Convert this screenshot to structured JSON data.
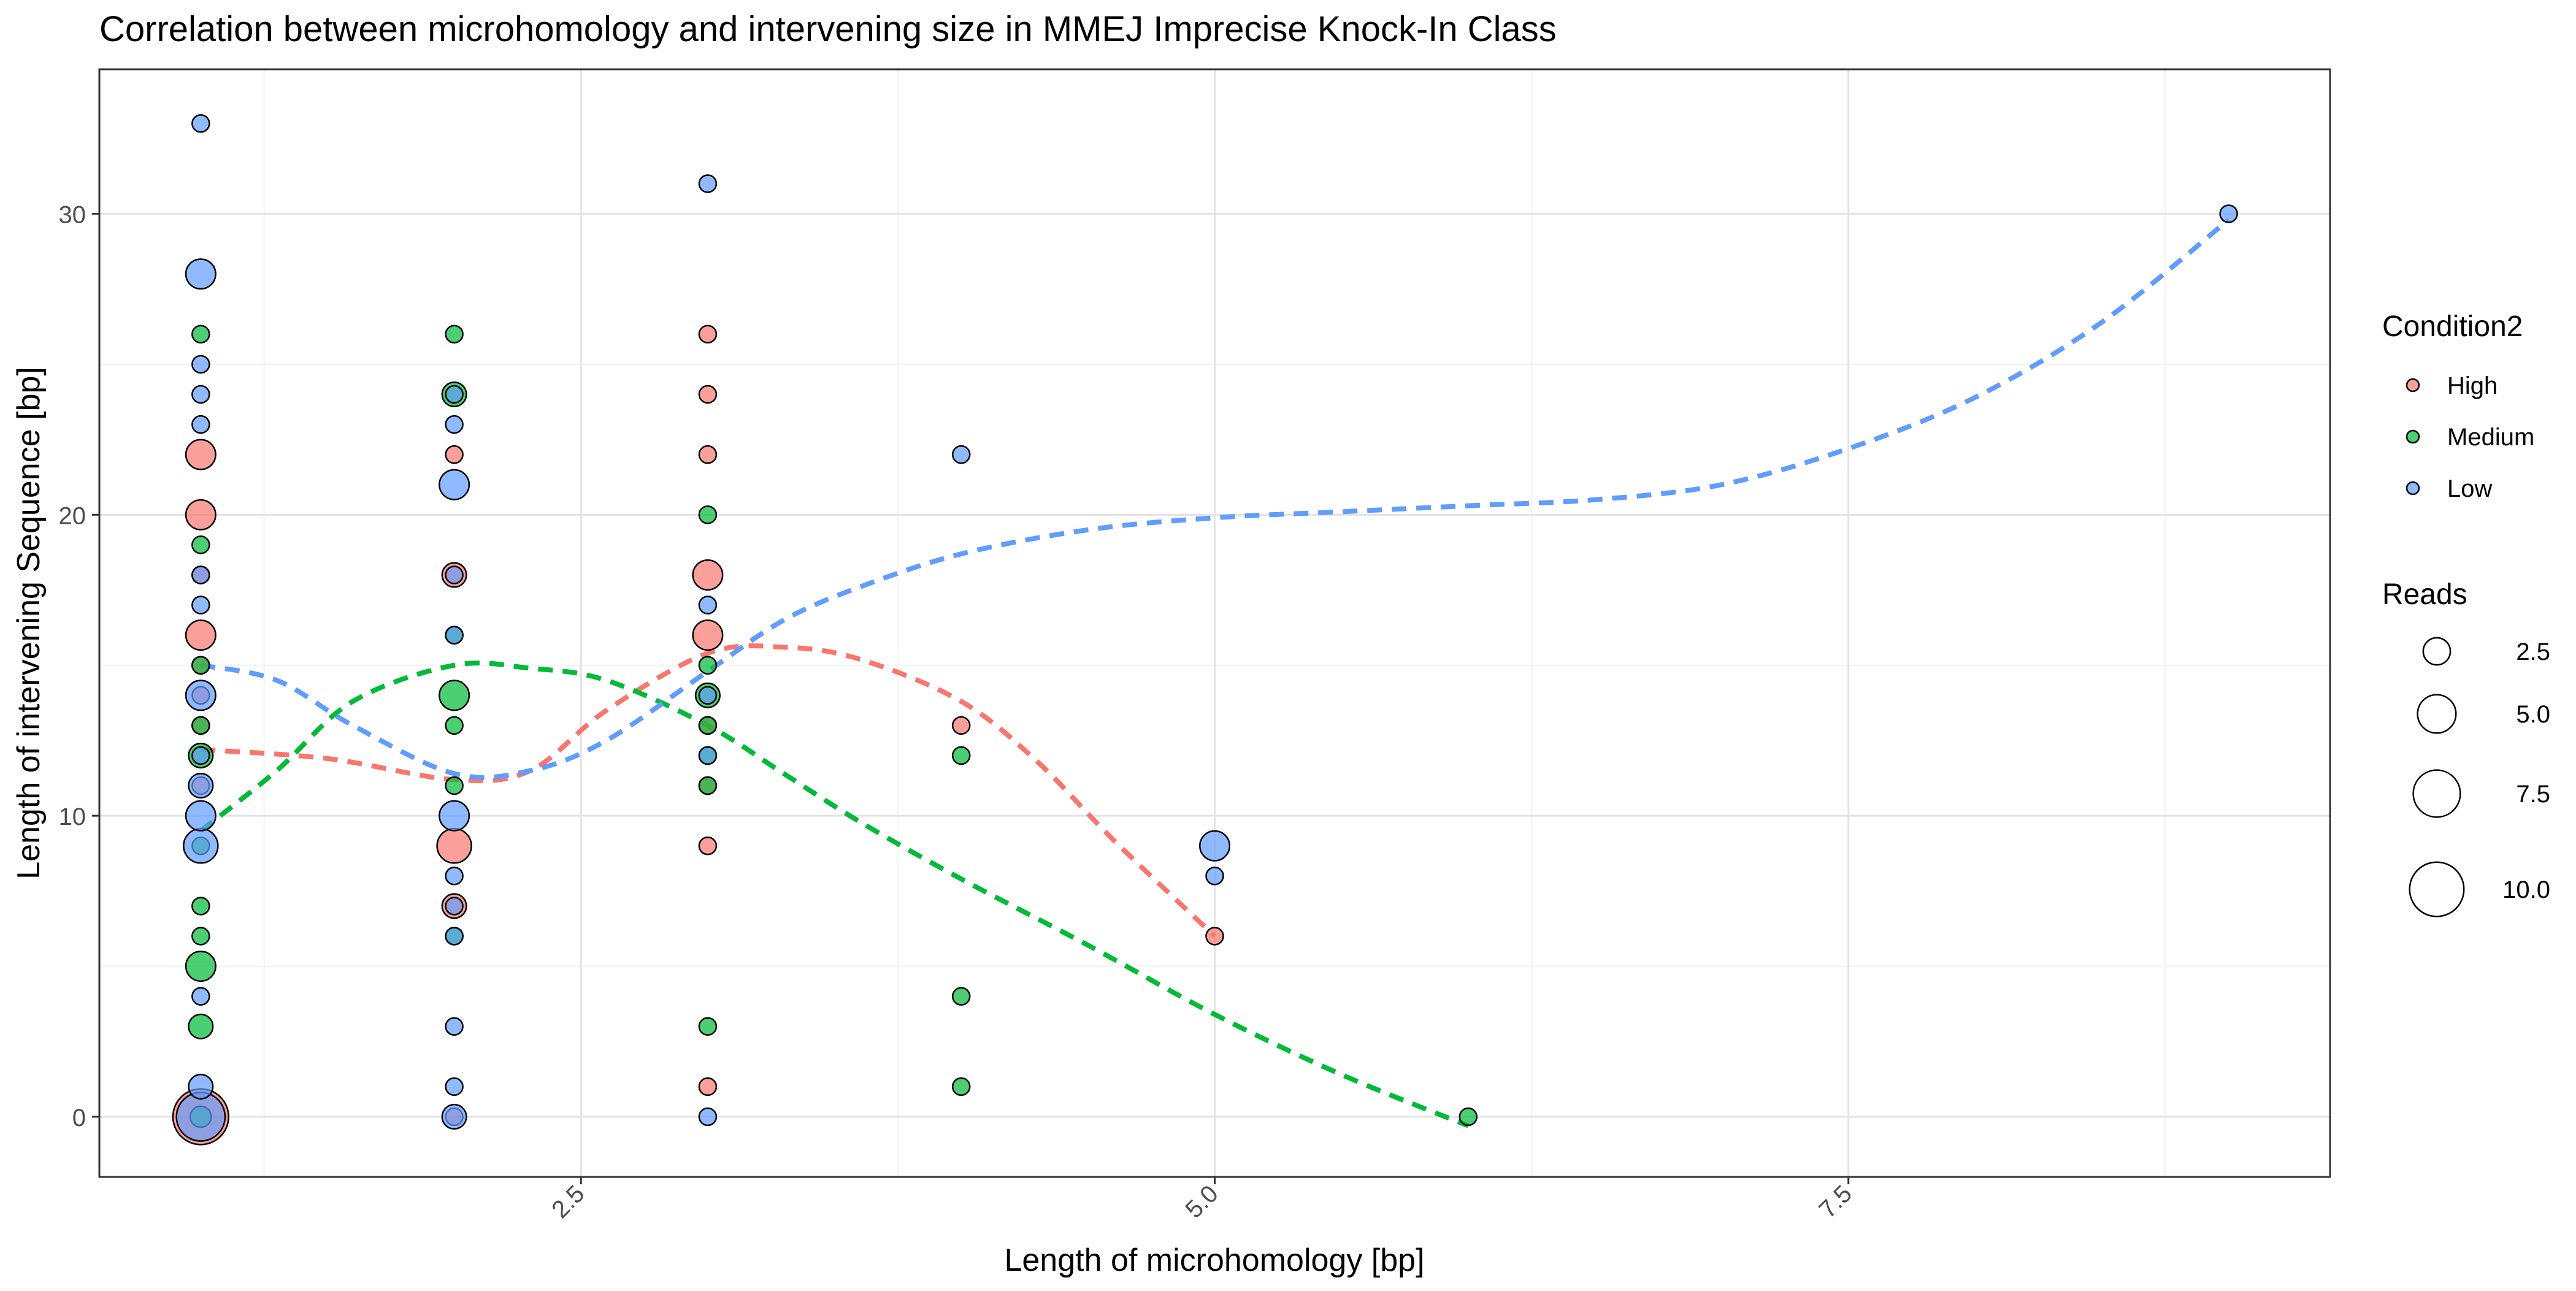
{
  "chart_data": {
    "type": "scatter",
    "title": "Correlation between microhomology and intervening size in MMEJ Imprecise Knock-In Class",
    "xlabel": "Length of microhomology [bp]",
    "ylabel": "Length of intervening Sequence [bp]",
    "xlim": [
      0.6,
      9.4
    ],
    "ylim": [
      -2,
      34.8
    ],
    "xticks": [
      2.5,
      5.0,
      7.5
    ],
    "xtick_labels": [
      "2.5",
      "5.0",
      "7.5"
    ],
    "yticks": [
      0,
      10,
      20,
      30
    ],
    "ytick_labels": [
      "0",
      "10",
      "20",
      "30"
    ],
    "grid": true,
    "legend_position": "right",
    "legend": {
      "color_title": "Condition2",
      "size_title": "Reads",
      "size_breaks": [
        2.5,
        5.0,
        7.5,
        10.0
      ],
      "size_labels": [
        "2.5",
        "5.0",
        "7.5",
        "10.0"
      ]
    },
    "series": [
      {
        "name": "High",
        "color": "#F8766D",
        "points": [
          {
            "x": 1,
            "y": 0,
            "r": 10.5
          },
          {
            "x": 1,
            "y": 16,
            "r": 3
          },
          {
            "x": 1,
            "y": 18,
            "r": 1
          },
          {
            "x": 1,
            "y": 20,
            "r": 3
          },
          {
            "x": 1,
            "y": 22,
            "r": 3
          },
          {
            "x": 1,
            "y": 15,
            "r": 1
          },
          {
            "x": 1,
            "y": 14,
            "r": 1
          },
          {
            "x": 1,
            "y": 11,
            "r": 1
          },
          {
            "x": 1,
            "y": 13,
            "r": 1
          },
          {
            "x": 2,
            "y": 9,
            "r": 4
          },
          {
            "x": 2,
            "y": 7,
            "r": 2
          },
          {
            "x": 2,
            "y": 18,
            "r": 2
          },
          {
            "x": 2,
            "y": 22,
            "r": 1
          },
          {
            "x": 2,
            "y": 0,
            "r": 1
          },
          {
            "x": 3,
            "y": 16,
            "r": 3
          },
          {
            "x": 3,
            "y": 18,
            "r": 3
          },
          {
            "x": 3,
            "y": 22,
            "r": 1
          },
          {
            "x": 3,
            "y": 24,
            "r": 1
          },
          {
            "x": 3,
            "y": 26,
            "r": 1
          },
          {
            "x": 3,
            "y": 13,
            "r": 1
          },
          {
            "x": 3,
            "y": 11,
            "r": 1
          },
          {
            "x": 3,
            "y": 9,
            "r": 1
          },
          {
            "x": 3,
            "y": 1,
            "r": 1
          },
          {
            "x": 4,
            "y": 13,
            "r": 1
          },
          {
            "x": 5,
            "y": 6,
            "r": 1
          }
        ]
      },
      {
        "name": "Medium",
        "color": "#00BA38",
        "points": [
          {
            "x": 1,
            "y": 0,
            "r": 1.5
          },
          {
            "x": 1,
            "y": 3,
            "r": 2
          },
          {
            "x": 1,
            "y": 5,
            "r": 3
          },
          {
            "x": 1,
            "y": 6,
            "r": 1
          },
          {
            "x": 1,
            "y": 7,
            "r": 1
          },
          {
            "x": 1,
            "y": 9,
            "r": 1
          },
          {
            "x": 1,
            "y": 12,
            "r": 2
          },
          {
            "x": 1,
            "y": 13,
            "r": 1
          },
          {
            "x": 1,
            "y": 15,
            "r": 1
          },
          {
            "x": 1,
            "y": 19,
            "r": 1
          },
          {
            "x": 1,
            "y": 26,
            "r": 1
          },
          {
            "x": 2,
            "y": 6,
            "r": 1
          },
          {
            "x": 2,
            "y": 11,
            "r": 1
          },
          {
            "x": 2,
            "y": 13,
            "r": 1
          },
          {
            "x": 2,
            "y": 14,
            "r": 3
          },
          {
            "x": 2,
            "y": 16,
            "r": 1
          },
          {
            "x": 2,
            "y": 24,
            "r": 2
          },
          {
            "x": 2,
            "y": 26,
            "r": 1
          },
          {
            "x": 3,
            "y": 3,
            "r": 1
          },
          {
            "x": 3,
            "y": 11,
            "r": 1
          },
          {
            "x": 3,
            "y": 12,
            "r": 1
          },
          {
            "x": 3,
            "y": 13,
            "r": 1
          },
          {
            "x": 3,
            "y": 14,
            "r": 2
          },
          {
            "x": 3,
            "y": 15,
            "r": 1
          },
          {
            "x": 3,
            "y": 20,
            "r": 1
          },
          {
            "x": 4,
            "y": 1,
            "r": 1
          },
          {
            "x": 4,
            "y": 4,
            "r": 1
          },
          {
            "x": 4,
            "y": 12,
            "r": 1
          },
          {
            "x": 6,
            "y": 0,
            "r": 1
          }
        ]
      },
      {
        "name": "Low",
        "color": "#619CFF",
        "points": [
          {
            "x": 1,
            "y": 0,
            "r": 8
          },
          {
            "x": 1,
            "y": 1,
            "r": 2
          },
          {
            "x": 1,
            "y": 4,
            "r": 1
          },
          {
            "x": 1,
            "y": 9,
            "r": 4
          },
          {
            "x": 1,
            "y": 10,
            "r": 3
          },
          {
            "x": 1,
            "y": 11,
            "r": 2
          },
          {
            "x": 1,
            "y": 12,
            "r": 1
          },
          {
            "x": 1,
            "y": 14,
            "r": 3
          },
          {
            "x": 1,
            "y": 17,
            "r": 1
          },
          {
            "x": 1,
            "y": 18,
            "r": 1
          },
          {
            "x": 1,
            "y": 23,
            "r": 1
          },
          {
            "x": 1,
            "y": 24,
            "r": 1
          },
          {
            "x": 1,
            "y": 25,
            "r": 1
          },
          {
            "x": 1,
            "y": 28,
            "r": 3
          },
          {
            "x": 1,
            "y": 33,
            "r": 1
          },
          {
            "x": 2,
            "y": 0,
            "r": 2
          },
          {
            "x": 2,
            "y": 1,
            "r": 1
          },
          {
            "x": 2,
            "y": 3,
            "r": 1
          },
          {
            "x": 2,
            "y": 6,
            "r": 1
          },
          {
            "x": 2,
            "y": 7,
            "r": 1
          },
          {
            "x": 2,
            "y": 8,
            "r": 1
          },
          {
            "x": 2,
            "y": 10,
            "r": 3
          },
          {
            "x": 2,
            "y": 16,
            "r": 1
          },
          {
            "x": 2,
            "y": 18,
            "r": 1
          },
          {
            "x": 2,
            "y": 21,
            "r": 3
          },
          {
            "x": 2,
            "y": 23,
            "r": 1
          },
          {
            "x": 2,
            "y": 24,
            "r": 1
          },
          {
            "x": 3,
            "y": 0,
            "r": 1
          },
          {
            "x": 3,
            "y": 12,
            "r": 1
          },
          {
            "x": 3,
            "y": 14,
            "r": 1
          },
          {
            "x": 3,
            "y": 17,
            "r": 1
          },
          {
            "x": 3,
            "y": 31,
            "r": 1
          },
          {
            "x": 4,
            "y": 22,
            "r": 1
          },
          {
            "x": 5,
            "y": 8,
            "r": 1
          },
          {
            "x": 5,
            "y": 9,
            "r": 3
          },
          {
            "x": 9,
            "y": 30,
            "r": 1
          }
        ]
      }
    ],
    "smooth_lines": [
      {
        "name": "High",
        "color": "#F8766D",
        "x": [
          1.0,
          1.5,
          2.0,
          2.3,
          2.6,
          3.0,
          3.3,
          3.6,
          4.0,
          4.3,
          4.6,
          5.0
        ],
        "y": [
          12.2,
          11.9,
          11.2,
          11.5,
          13.5,
          15.4,
          15.6,
          15.2,
          13.8,
          11.8,
          9.2,
          6.0
        ]
      },
      {
        "name": "Medium",
        "color": "#00BA38",
        "x": [
          1.0,
          1.3,
          1.6,
          2.0,
          2.3,
          2.6,
          3.0,
          3.3,
          3.6,
          4.0,
          4.5,
          5.0,
          5.5,
          6.0
        ],
        "y": [
          9.5,
          11.5,
          13.8,
          15.0,
          14.9,
          14.5,
          13.0,
          11.4,
          9.8,
          7.9,
          5.7,
          3.4,
          1.4,
          -0.3
        ]
      },
      {
        "name": "Low",
        "color": "#619CFF",
        "x": [
          1.0,
          1.3,
          1.6,
          2.0,
          2.3,
          2.6,
          3.0,
          3.3,
          3.6,
          4.0,
          4.5,
          5.0,
          5.5,
          6.0,
          6.5,
          7.0,
          7.5,
          8.0,
          8.5,
          9.0
        ],
        "y": [
          15.0,
          14.5,
          13.0,
          11.4,
          11.5,
          12.5,
          14.8,
          16.5,
          17.6,
          18.7,
          19.5,
          19.9,
          20.1,
          20.3,
          20.5,
          21.0,
          22.2,
          23.9,
          26.4,
          29.8
        ]
      }
    ]
  }
}
